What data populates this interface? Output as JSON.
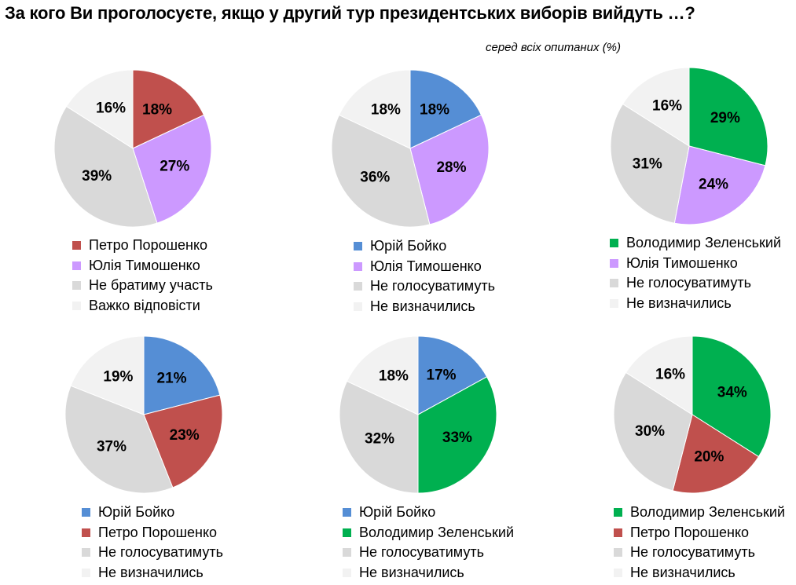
{
  "title": "За кого Ви проголосуєте, якщо у другий тур президентських виборів вийдуть …?",
  "subtitle": "серед всіх опитаних (%)",
  "colors": {
    "poroshenko": "#c0504d",
    "tymoshenko": "#cc99ff",
    "boyko": "#558ed5",
    "zelensky": "#00b050",
    "no_vote": "#d9d9d9",
    "undecided": "#f2f2f2"
  },
  "chart_data": [
    {
      "type": "pie",
      "categories": [
        "Петро Порошенко",
        "Юлія Тимошенко",
        "Не братиму участь",
        "Важко відповісти"
      ],
      "values": [
        18,
        27,
        39,
        16
      ],
      "colors": [
        "#c0504d",
        "#cc99ff",
        "#d9d9d9",
        "#f2f2f2"
      ]
    },
    {
      "type": "pie",
      "categories": [
        "Юрій Бойко",
        "Юлія Тимошенко",
        "Не голосуватимуть",
        "Не визначились"
      ],
      "values": [
        18,
        28,
        36,
        18
      ],
      "colors": [
        "#558ed5",
        "#cc99ff",
        "#d9d9d9",
        "#f2f2f2"
      ]
    },
    {
      "type": "pie",
      "categories": [
        "Володимир Зеленський",
        "Юлія Тимошенко",
        "Не голосуватимуть",
        "Не визначились"
      ],
      "values": [
        29,
        24,
        31,
        16
      ],
      "colors": [
        "#00b050",
        "#cc99ff",
        "#d9d9d9",
        "#f2f2f2"
      ]
    },
    {
      "type": "pie",
      "categories": [
        "Юрій Бойко",
        "Петро Порошенко",
        "Не голосуватимуть",
        "Не визначились"
      ],
      "values": [
        21,
        23,
        37,
        19
      ],
      "colors": [
        "#558ed5",
        "#c0504d",
        "#d9d9d9",
        "#f2f2f2"
      ]
    },
    {
      "type": "pie",
      "categories": [
        "Юрій Бойко",
        "Володимир Зеленський",
        "Не голосуватимуть",
        "Не визначились"
      ],
      "values": [
        17,
        33,
        32,
        18
      ],
      "colors": [
        "#558ed5",
        "#00b050",
        "#d9d9d9",
        "#f2f2f2"
      ]
    },
    {
      "type": "pie",
      "categories": [
        "Володимир Зеленський",
        "Петро Порошенко",
        "Не голосуватимуть",
        "Не визначились"
      ],
      "values": [
        34,
        20,
        30,
        16
      ],
      "colors": [
        "#00b050",
        "#c0504d",
        "#d9d9d9",
        "#f2f2f2"
      ]
    }
  ]
}
